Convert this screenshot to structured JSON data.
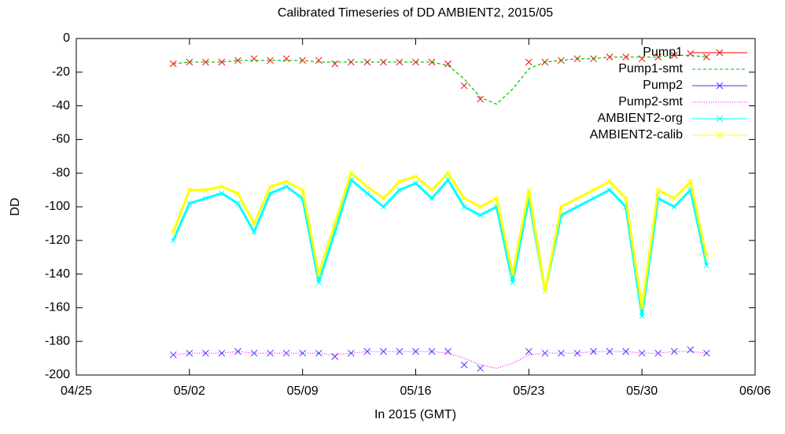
{
  "chart_data": {
    "type": "line",
    "title": "Calibrated Timeseries of DD AMBIENT2, 2015/05",
    "x_label": "In 2015 (GMT)",
    "y_label": "DD",
    "x": [
      "05/01",
      "05/02",
      "05/03",
      "05/04",
      "05/05",
      "05/06",
      "05/07",
      "05/08",
      "05/09",
      "05/10",
      "05/11",
      "05/12",
      "05/13",
      "05/14",
      "05/15",
      "05/16",
      "05/17",
      "05/18",
      "05/19",
      "05/20",
      "05/21",
      "05/22",
      "05/23",
      "05/24",
      "05/25",
      "05/26",
      "05/27",
      "05/28",
      "05/29",
      "05/30",
      "05/31",
      "06/01",
      "06/02",
      "06/03"
    ],
    "xlim": [
      "04/25",
      "06/06"
    ],
    "xticks": [
      "04/25",
      "05/02",
      "05/09",
      "05/16",
      "05/23",
      "05/30",
      "06/06"
    ],
    "ylim": [
      -200,
      0
    ],
    "yticks": [
      0,
      -20,
      -40,
      -60,
      -80,
      -100,
      -120,
      -140,
      -160,
      -180,
      -200
    ],
    "grid": false,
    "legend": "top-right",
    "series": [
      {
        "name": "Pump1",
        "color": "#ff0000",
        "style": "points",
        "values": [
          -15,
          -14,
          -14,
          -14,
          -13,
          -12,
          -13,
          -12,
          -13,
          -13,
          -15,
          -14,
          -14,
          -14,
          -14,
          -14,
          -14,
          -15,
          -28,
          -36,
          null,
          null,
          -14,
          -14,
          -13,
          -12,
          -12,
          -11,
          -11,
          -12,
          -11,
          -10,
          -9,
          -11
        ]
      },
      {
        "name": "Pump1-smt",
        "color": "#00c000",
        "style": "dashed",
        "values": [
          -15,
          -14,
          -14,
          -14,
          -13,
          -13,
          -13,
          -13,
          -13,
          -14,
          -14,
          -14,
          -14,
          -14,
          -14,
          -14,
          -14,
          -16,
          -24,
          -35,
          -39,
          -30,
          -18,
          -14,
          -13,
          -12,
          -12,
          -11,
          -11,
          -11,
          -11,
          -10,
          -10,
          -11
        ]
      },
      {
        "name": "Pump2",
        "color": "#3a3aff",
        "style": "points",
        "values": [
          -188,
          -187,
          -187,
          -187,
          -186,
          -187,
          -187,
          -187,
          -187,
          -187,
          -189,
          -187,
          -186,
          -186,
          -186,
          -186,
          -186,
          -186,
          -194,
          -196,
          null,
          null,
          -186,
          -187,
          -187,
          -187,
          -186,
          -186,
          -186,
          -187,
          -187,
          -186,
          -185,
          -187
        ]
      },
      {
        "name": "Pump2-smt",
        "color": "#ff00ff",
        "style": "dotted",
        "values": [
          -188,
          -187,
          -187,
          -187,
          -186,
          -187,
          -187,
          -187,
          -187,
          -187,
          -188,
          -187,
          -186,
          -186,
          -186,
          -186,
          -186,
          -187,
          -190,
          -194,
          -196,
          -193,
          -188,
          -187,
          -187,
          -187,
          -186,
          -186,
          -186,
          -187,
          -187,
          -186,
          -186,
          -187
        ]
      },
      {
        "name": "AMBIENT2-org",
        "color": "#00ffff",
        "style": "linespoints",
        "values": [
          -120,
          -98,
          -95,
          -92,
          -98,
          -115,
          -92,
          -88,
          -95,
          -145,
          -115,
          -84,
          -92,
          -100,
          -90,
          -86,
          -95,
          -84,
          -100,
          -105,
          -100,
          -145,
          -95,
          -150,
          -105,
          -100,
          -95,
          -90,
          -100,
          -165,
          -95,
          -100,
          -90,
          -135
        ]
      },
      {
        "name": "AMBIENT2-calib",
        "color": "#ffff00",
        "style": "linespoints",
        "values": [
          -115,
          -90,
          -90,
          -88,
          -92,
          -110,
          -88,
          -85,
          -90,
          -140,
          -110,
          -80,
          -88,
          -95,
          -85,
          -82,
          -90,
          -80,
          -95,
          -100,
          -95,
          -140,
          -90,
          -150,
          -100,
          -95,
          -90,
          -85,
          -95,
          -160,
          -90,
          -95,
          -85,
          -130
        ]
      }
    ]
  }
}
